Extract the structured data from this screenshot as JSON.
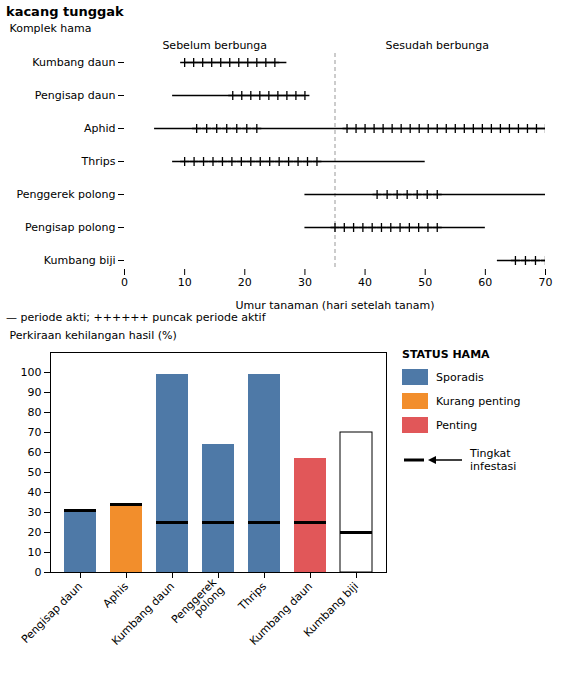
{
  "chart_data": [
    {
      "type": "timeline",
      "title": "kacang tunggak",
      "xlabel": "Umur tanaman (hari setelah tanam)",
      "ylabel": "Komplek hama",
      "categories": [
        "Kumbang daun",
        "Pengisap daun",
        "Aphid",
        "Thrips",
        "Penggerek polong",
        "Pengisap polong",
        "Kumbang biji"
      ],
      "active_periods": [
        [
          10,
          27
        ],
        [
          8,
          30
        ],
        [
          5,
          70
        ],
        [
          8,
          50
        ],
        [
          30,
          70
        ],
        [
          30,
          60
        ],
        [
          62,
          70
        ]
      ],
      "peak_periods": [
        [
          [
            10,
            25
          ]
        ],
        [
          [
            18,
            30
          ]
        ],
        [
          [
            12,
            22
          ],
          [
            37,
            70
          ]
        ],
        [
          [
            10,
            32
          ]
        ],
        [
          [
            42,
            52
          ]
        ],
        [
          [
            35,
            52
          ]
        ],
        [
          [
            65,
            70
          ]
        ]
      ],
      "xlim": [
        0,
        70
      ],
      "xticks": [
        0,
        10,
        20,
        30,
        40,
        50,
        60,
        70
      ],
      "phase_divider": 35,
      "annotations": [
        {
          "text": "Sebelum berbunga",
          "x": 15
        },
        {
          "text": "Sesudah berbunga",
          "x": 52
        }
      ],
      "note": "— periode akti; ++++++ puncak periode aktif"
    },
    {
      "type": "bar",
      "ylabel": "Perkiraan kehilangan hasil (%)",
      "categories": [
        "Pengisap daun",
        "Aphis",
        "Kumbang daun",
        "Penggerek\npolong",
        "Thrips",
        "Kumbang daun",
        "Kumbang biji"
      ],
      "values": [
        31,
        34,
        99,
        64,
        99,
        57,
        70
      ],
      "infestasi": [
        31,
        34,
        25,
        25,
        25,
        25,
        20
      ],
      "status": [
        "Sporadis",
        "Kurang penting",
        "Sporadis",
        "Sporadis",
        "Sporadis",
        "Penting",
        null
      ],
      "status_title": "STATUS HAMA",
      "status_levels": [
        "Sporadis",
        "Kurang penting",
        "Penting"
      ],
      "infestasi_label": "Tingkat\ninfestasi",
      "ylim": [
        0,
        110
      ],
      "yticks": [
        0,
        10,
        20,
        30,
        40,
        50,
        60,
        70,
        80,
        90,
        100
      ]
    }
  ]
}
